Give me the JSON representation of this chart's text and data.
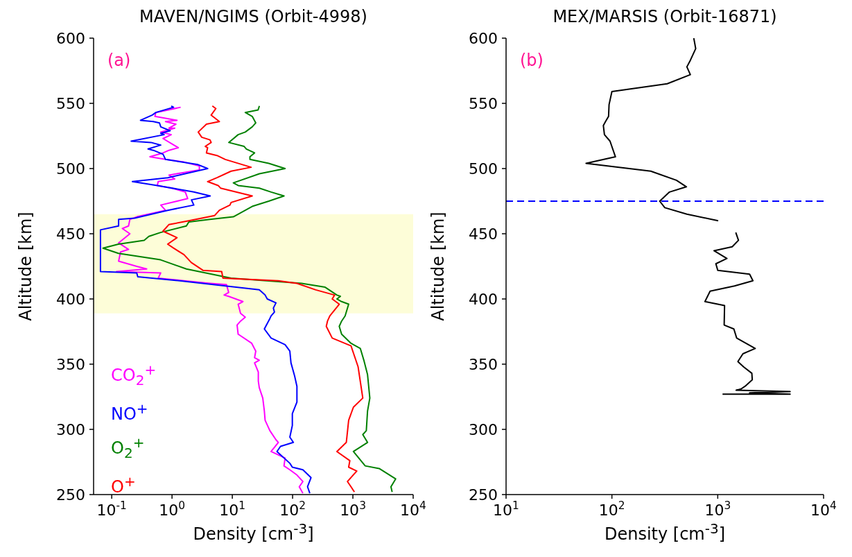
{
  "chart_data": [
    {
      "type": "line",
      "title": "MAVEN/NGIMS (Orbit-4998)",
      "xlabel": "Density [cm$^{-3}$]",
      "ylabel": "Altitude [km]",
      "annotations": [
        "(a)"
      ],
      "log": "x",
      "legend": "bottom left",
      "xlim": [
        0.05,
        10000
      ],
      "xticks": [
        {
          "value": 0.1,
          "label": "10$^{-1}$"
        },
        {
          "value": 1,
          "label": "10$^{0}$"
        },
        {
          "value": 10,
          "label": "10$^{1}$"
        },
        {
          "value": 100,
          "label": "10$^{2}$"
        },
        {
          "value": 1000,
          "label": "10$^{3}$"
        },
        {
          "value": 10000,
          "label": "10$^{4}$"
        }
      ],
      "ylim": [
        250,
        600
      ],
      "yticks": [
        250,
        300,
        350,
        400,
        450,
        500,
        550,
        600
      ],
      "bands": [
        {
          "axis": "y",
          "from": 389,
          "to": 465,
          "color": "#fdfdd8"
        }
      ],
      "series": [
        {
          "name": "CO$_{2}$$^{+}$",
          "color": "#ff00ff",
          "x": [
            1.39,
            0.54,
            0.52,
            1.21,
            0.78,
            1.16,
            0.89,
            1.11,
            0.65,
            0.97,
            0.71,
            1.27,
            0.89,
            0.71,
            0.43,
            0.78,
            1.58,
            2.84,
            2.84,
            1.58,
            0.89,
            1.11,
            0.59,
            0.57,
            1.0,
            1.66,
            1.82,
            1.21,
            0.65,
            0.78,
            0.26,
            0.2,
            0.19,
            0.15,
            0.2,
            0.13,
            0.19,
            0.14,
            0.13,
            0.26,
            0.38,
            0.12,
            0.65,
            0.59,
            1.58,
            4.3,
            8.0,
            8.7,
            7.3,
            8.7,
            15,
            12.5,
            13.7,
            16.4,
            13.7,
            12,
            12.5,
            21,
            24.5,
            23.4,
            28,
            23.4,
            27,
            27,
            28,
            32,
            34,
            35,
            42,
            53,
            58,
            44,
            75,
            72,
            90,
            118,
            148,
            129,
            148
          ],
          "values": [
            547,
            543,
            540,
            537,
            536,
            534,
            531,
            531,
            528,
            526,
            523,
            516,
            514,
            512,
            509,
            507,
            505,
            502,
            499,
            497,
            495,
            492,
            490,
            487,
            485,
            482,
            477,
            475,
            472,
            468,
            463,
            461,
            456,
            454,
            450,
            443,
            438,
            436,
            429,
            425,
            423,
            421,
            420,
            416,
            414,
            412,
            411,
            405,
            403,
            402,
            398,
            396,
            389,
            386,
            383,
            380,
            373,
            366,
            360,
            355,
            353,
            351,
            344,
            337,
            332,
            324,
            314,
            307,
            299,
            292,
            290,
            283,
            278,
            272,
            269,
            265,
            260,
            256,
            251
          ]
        },
        {
          "name": "NO$^{+}$",
          "color": "#0000ff",
          "x": [
            0.97,
            1.06,
            0.54,
            0.47,
            0.3,
            0.49,
            0.62,
            0.65,
            0.93,
            0.65,
            0.74,
            0.21,
            0.45,
            0.65,
            0.4,
            0.49,
            0.71,
            0.78,
            2.7,
            3.9,
            0.85,
            0.22,
            0.57,
            2.3,
            4.3,
            2.1,
            2.3,
            0.85,
            0.24,
            0.13,
            0.13,
            0.065,
            0.065,
            0.26,
            0.27,
            1.33,
            28,
            35,
            38,
            53,
            48,
            50,
            44,
            42,
            34,
            44,
            75,
            90,
            94,
            108,
            118,
            118,
            99,
            99,
            90,
            103,
            63,
            55,
            90,
            99,
            148,
            202,
            177,
            193
          ],
          "values": [
            548,
            547,
            543,
            541,
            537,
            536,
            535,
            532,
            529,
            527,
            526,
            521,
            520,
            518,
            515,
            514,
            511,
            507,
            503,
            500,
            493,
            490,
            487,
            482,
            479,
            476,
            472,
            468,
            462,
            461,
            456,
            453,
            421,
            420,
            417,
            414,
            407,
            403,
            400,
            397,
            393,
            390,
            387,
            385,
            377,
            370,
            365,
            360,
            351,
            341,
            333,
            321,
            312,
            303,
            294,
            290,
            287,
            283,
            274,
            271,
            269,
            263,
            256,
            251
          ]
        },
        {
          "name": "O$_{2}$$^{+}$",
          "color": "#008000",
          "x": [
            28.1,
            26.8,
            16.4,
            21.4,
            24.5,
            21.4,
            16.4,
            12.5,
            8.73,
            15.7,
            17.1,
            23.4,
            19.6,
            19.6,
            40.2,
            75,
            28.1,
            10.4,
            12.5,
            28.1,
            44,
            72.1,
            40.2,
            21.4,
            10.4,
            4.26,
            1.9,
            1.73,
            0.647,
            0.413,
            0.345,
            0.129,
            0.0716,
            0.129,
            0.647,
            1.73,
            9.55,
            141,
            347,
            543,
            621,
            543,
            650,
            851,
            743,
            650,
            594,
            650,
            931,
            1330,
            1520,
            1750,
            1910,
            1750,
            1670,
            1460,
            1750,
            1020,
            1600,
            2730,
            5120,
            4280,
            4480
          ],
          "values": [
            548,
            545,
            543,
            540,
            535,
            532,
            528,
            526,
            520,
            517,
            515,
            512,
            509,
            507,
            504,
            500,
            496,
            489,
            487,
            485,
            482,
            479,
            475,
            471,
            463,
            461,
            459,
            456,
            451,
            448,
            445,
            442,
            439,
            435,
            430,
            423,
            416,
            412,
            409,
            403,
            402,
            400,
            398,
            396,
            387,
            383,
            379,
            373,
            366,
            362,
            353,
            342,
            324,
            314,
            299,
            296,
            290,
            283,
            272,
            270,
            262,
            256,
            252
          ]
        },
        {
          "name": "O$^{+}$",
          "color": "#ff0000",
          "x": [
            4.66,
            5.33,
            4.46,
            6.1,
            3.72,
            2.72,
            3.11,
            4.26,
            4.46,
            3.56,
            3.89,
            3.72,
            5.57,
            7.64,
            20.5,
            9.55,
            5.57,
            3.89,
            5.83,
            6.38,
            21.4,
            9.55,
            9.14,
            6.1,
            5.1,
            1.9,
            0.885,
            0.708,
            1.21,
            0.847,
            1.06,
            1.58,
            2.08,
            3.25,
            6.67,
            6.98,
            57.6,
            118,
            242,
            497,
            454,
            594,
            415,
            379,
            362,
            454,
            931,
            1220,
            1460,
            1020,
            851,
            778,
            543,
            890,
            851,
            1160,
            813,
            931,
            1060
          ],
          "values": [
            548,
            546,
            541,
            536,
            534,
            528,
            524,
            522,
            520,
            517,
            516,
            512,
            510,
            507,
            501,
            498,
            493,
            490,
            487,
            485,
            479,
            474,
            472,
            468,
            464,
            460,
            457,
            452,
            447,
            442,
            439,
            434,
            428,
            422,
            421,
            416,
            414,
            412,
            407,
            403,
            400,
            396,
            387,
            383,
            379,
            370,
            364,
            348,
            324,
            317,
            307,
            290,
            283,
            276,
            271,
            268,
            260,
            256,
            252
          ]
        }
      ]
    },
    {
      "type": "line",
      "title": "MEX/MARSIS (Orbit-16871)",
      "xlabel": "Density [cm$^{-3}$]",
      "ylabel": "Altitude [km]",
      "annotations": [
        "(b)"
      ],
      "log": "x",
      "xlim": [
        10,
        10000
      ],
      "xticks": [
        {
          "value": 10,
          "label": "10$^{1}$"
        },
        {
          "value": 100,
          "label": "10$^{2}$"
        },
        {
          "value": 1000,
          "label": "10$^{3}$"
        },
        {
          "value": 10000,
          "label": "10$^{4}$"
        }
      ],
      "ylim": [
        250,
        600
      ],
      "yticks": [
        250,
        300,
        350,
        400,
        450,
        500,
        550,
        600
      ],
      "ref_lines": [
        {
          "axis": "y",
          "value": 475,
          "color": "#0000ff",
          "line_style": "dashed"
        }
      ],
      "series": [
        {
          "color": "#000000",
          "x": [
            594,
            619,
            551,
            511,
            551,
            333,
            100,
            94,
            93,
            87,
            83,
            85,
            96,
            108,
            57,
            233,
            407,
            506,
            350,
            283,
            316,
            511,
            1010,
            null,
            1480,
            1570,
            1370,
            922,
            1220,
            960,
            1000,
            2000,
            2150,
            1440,
            847,
            757,
            1160,
            1150,
            1420,
            1510,
            2260,
            1730,
            1550,
            1750,
            2100,
            2120,
            1810,
            1660,
            1490,
            4830,
            2000,
            4830,
            1110
          ],
          "values": [
            600,
            592,
            583,
            578,
            572,
            565,
            559,
            549,
            540,
            536,
            533,
            526,
            521,
            509,
            504,
            498,
            491,
            486,
            482,
            475,
            470,
            465,
            460,
            null,
            451,
            445,
            440,
            437,
            431,
            427,
            422,
            419,
            414,
            410,
            406,
            398,
            395,
            380,
            377,
            370,
            362,
            358,
            352,
            348,
            343,
            338,
            333,
            331,
            330,
            329,
            328,
            327,
            327
          ]
        }
      ]
    }
  ]
}
